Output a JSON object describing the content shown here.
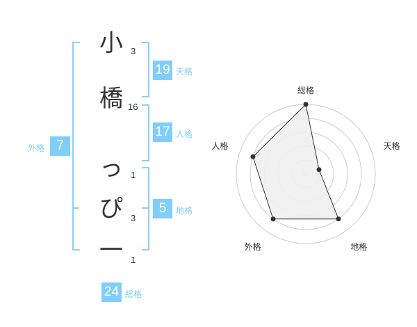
{
  "name": {
    "chars": [
      {
        "char": "小",
        "strokes": "3"
      },
      {
        "char": "橋",
        "strokes": "16"
      },
      {
        "char": "っ",
        "strokes": "1"
      },
      {
        "char": "ぴ",
        "strokes": "3"
      },
      {
        "char": "一",
        "strokes": "1"
      }
    ]
  },
  "fortune": {
    "tenkaku": {
      "label": "天格",
      "value": "19"
    },
    "jinkaku": {
      "label": "人格",
      "value": "17"
    },
    "chikaku": {
      "label": "地格",
      "value": "5"
    },
    "gaikaku": {
      "label": "外格",
      "value": "7"
    },
    "soukaku": {
      "label": "総格",
      "value": "24"
    }
  },
  "colors": {
    "accent": "#81cdfb",
    "fill": "#f0f0f0",
    "ring": "#cccccc"
  },
  "chart_data": {
    "type": "radar",
    "categories": [
      "総格",
      "天格",
      "地格",
      "外格",
      "人格"
    ],
    "values": [
      5,
      1,
      4,
      4,
      4
    ],
    "range": [
      0,
      5
    ],
    "rings": 5
  }
}
